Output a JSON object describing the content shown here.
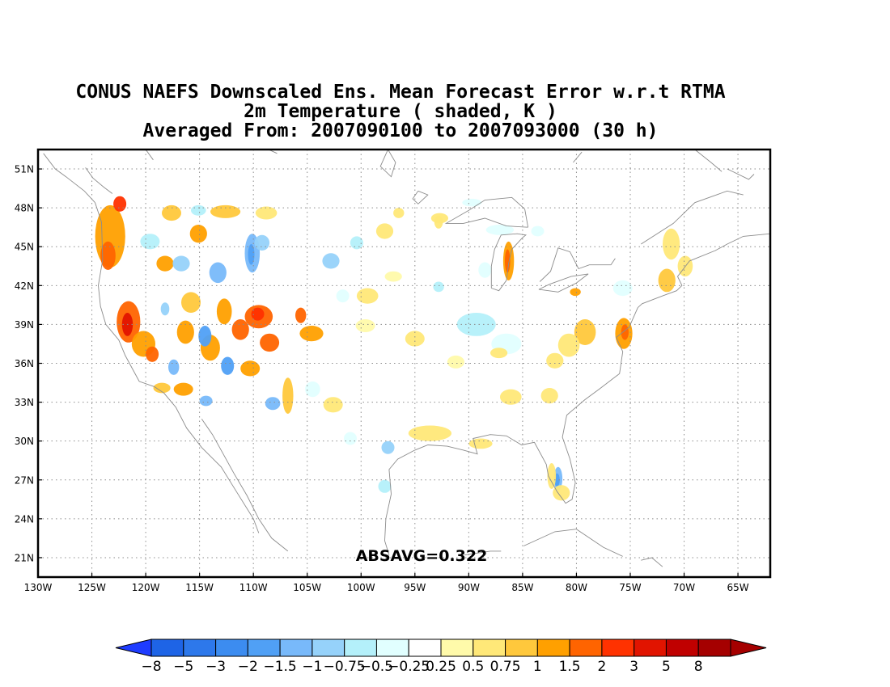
{
  "title": {
    "line1": "CONUS NAEFS Downscaled Ens. Mean Forecast Error w.r.t RTMA",
    "line2": "2m Temperature ( shaded, K )",
    "line3": "Averaged From: 2007090100 to 2007093000 (30 h)"
  },
  "map": {
    "lon_range": [
      -130,
      -62
    ],
    "lat_range": [
      19.5,
      52.5
    ],
    "lon_ticks": [
      -130,
      -125,
      -120,
      -115,
      -110,
      -105,
      -100,
      -95,
      -90,
      -85,
      -80,
      -75,
      -70,
      -65
    ],
    "lon_labels": [
      "130W",
      "125W",
      "120W",
      "115W",
      "110W",
      "105W",
      "100W",
      "95W",
      "90W",
      "85W",
      "80W",
      "75W",
      "70W",
      "65W"
    ],
    "lat_ticks": [
      21,
      24,
      27,
      30,
      33,
      36,
      39,
      42,
      45,
      48,
      51
    ],
    "lat_labels": [
      "21N",
      "24N",
      "27N",
      "30N",
      "33N",
      "36N",
      "39N",
      "42N",
      "45N",
      "48N",
      "51N"
    ],
    "grid": "dotted",
    "annotation": "ABSAVG=0.322"
  },
  "colorbar": {
    "labels": [
      "-8",
      "-5",
      "-3",
      "-2",
      "-1.5",
      "-1",
      "-0.75",
      "-0.5",
      "-0.25",
      "0.25",
      "0.5",
      "0.75",
      "1",
      "1.5",
      "2",
      "3",
      "5",
      "8"
    ],
    "colors": [
      "#1e64e6",
      "#2d78eb",
      "#3c8cf0",
      "#50a0f5",
      "#78b9fa",
      "#96d2fa",
      "#b4f0fa",
      "#e1ffff",
      "#ffffff",
      "#fffaaa",
      "#ffe878",
      "#ffc83c",
      "#ffa000",
      "#ff6400",
      "#ff3200",
      "#e11400",
      "#c00000",
      "#a50000"
    ],
    "under_color": "#1e3cff",
    "over_color": "#a50000"
  }
}
